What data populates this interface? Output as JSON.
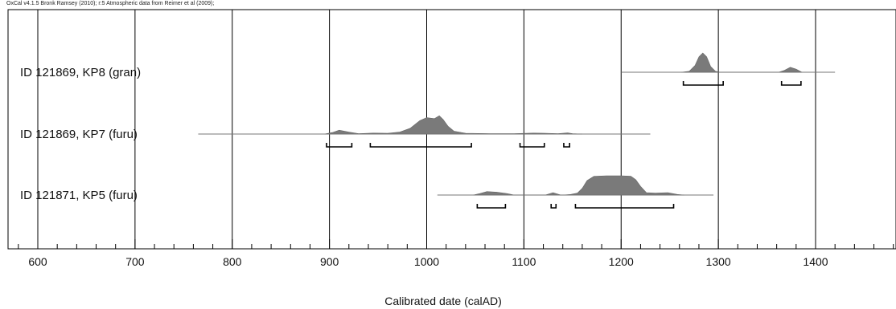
{
  "credit": "OxCal v4.1.5 Bronk Ramsey (2010); r:5 Atmospheric data from Reimer et al (2009);",
  "chart_data": {
    "type": "area",
    "title": "",
    "xlabel": "Calibrated date (calAD)",
    "ylabel": "",
    "xlim": [
      570,
      1480
    ],
    "grid": true,
    "x_ticks": [
      600,
      700,
      800,
      900,
      1000,
      1100,
      1200,
      1300,
      1400
    ],
    "series": [
      {
        "name": "ID 121869, KP8 (gran)",
        "baseline_range": [
          1200,
          1420
        ],
        "density": [
          [
            1262,
            0
          ],
          [
            1270,
            0.05
          ],
          [
            1276,
            0.35
          ],
          [
            1280,
            0.8
          ],
          [
            1284,
            1.0
          ],
          [
            1288,
            0.8
          ],
          [
            1292,
            0.3
          ],
          [
            1297,
            0.05
          ],
          [
            1302,
            0
          ],
          [
            1362,
            0
          ],
          [
            1368,
            0.1
          ],
          [
            1374,
            0.26
          ],
          [
            1380,
            0.16
          ],
          [
            1386,
            0
          ]
        ],
        "hpd_ranges": [
          [
            1264,
            1305
          ],
          [
            1365,
            1385
          ]
        ]
      },
      {
        "name": "ID 121869, KP7 (furu)",
        "baseline_range": [
          765,
          1230
        ],
        "density": [
          [
            895,
            0
          ],
          [
            903,
            0.08
          ],
          [
            910,
            0.2
          ],
          [
            920,
            0.1
          ],
          [
            930,
            0.02
          ],
          [
            945,
            0.05
          ],
          [
            960,
            0.04
          ],
          [
            972,
            0.1
          ],
          [
            983,
            0.3
          ],
          [
            993,
            0.7
          ],
          [
            1000,
            0.85
          ],
          [
            1008,
            0.8
          ],
          [
            1013,
            0.95
          ],
          [
            1017,
            0.75
          ],
          [
            1022,
            0.4
          ],
          [
            1028,
            0.15
          ],
          [
            1040,
            0.04
          ],
          [
            1065,
            0.02
          ],
          [
            1090,
            0.02
          ],
          [
            1110,
            0.05
          ],
          [
            1122,
            0.04
          ],
          [
            1135,
            0.02
          ],
          [
            1145,
            0.06
          ],
          [
            1150,
            0.02
          ],
          [
            1160,
            0
          ]
        ],
        "hpd_ranges": [
          [
            897,
            923
          ],
          [
            942,
            1046
          ],
          [
            1096,
            1121
          ],
          [
            1141,
            1147
          ]
        ]
      },
      {
        "name": "ID 121871, KP5 (furu)",
        "baseline_range": [
          1011,
          1295
        ],
        "density": [
          [
            1048,
            0
          ],
          [
            1055,
            0.08
          ],
          [
            1062,
            0.18
          ],
          [
            1072,
            0.15
          ],
          [
            1082,
            0.08
          ],
          [
            1090,
            0
          ],
          [
            1122,
            0
          ],
          [
            1130,
            0.12
          ],
          [
            1138,
            0
          ],
          [
            1140,
            0
          ],
          [
            1148,
            0.03
          ],
          [
            1155,
            0.1
          ],
          [
            1160,
            0.35
          ],
          [
            1165,
            0.75
          ],
          [
            1172,
            0.97
          ],
          [
            1185,
            1.0
          ],
          [
            1200,
            1.0
          ],
          [
            1210,
            0.98
          ],
          [
            1215,
            0.8
          ],
          [
            1220,
            0.45
          ],
          [
            1226,
            0.12
          ],
          [
            1235,
            0.1
          ],
          [
            1248,
            0.12
          ],
          [
            1258,
            0.03
          ],
          [
            1265,
            0
          ]
        ],
        "hpd_ranges": [
          [
            1052,
            1081
          ],
          [
            1128,
            1133
          ],
          [
            1153,
            1254
          ]
        ]
      }
    ]
  }
}
